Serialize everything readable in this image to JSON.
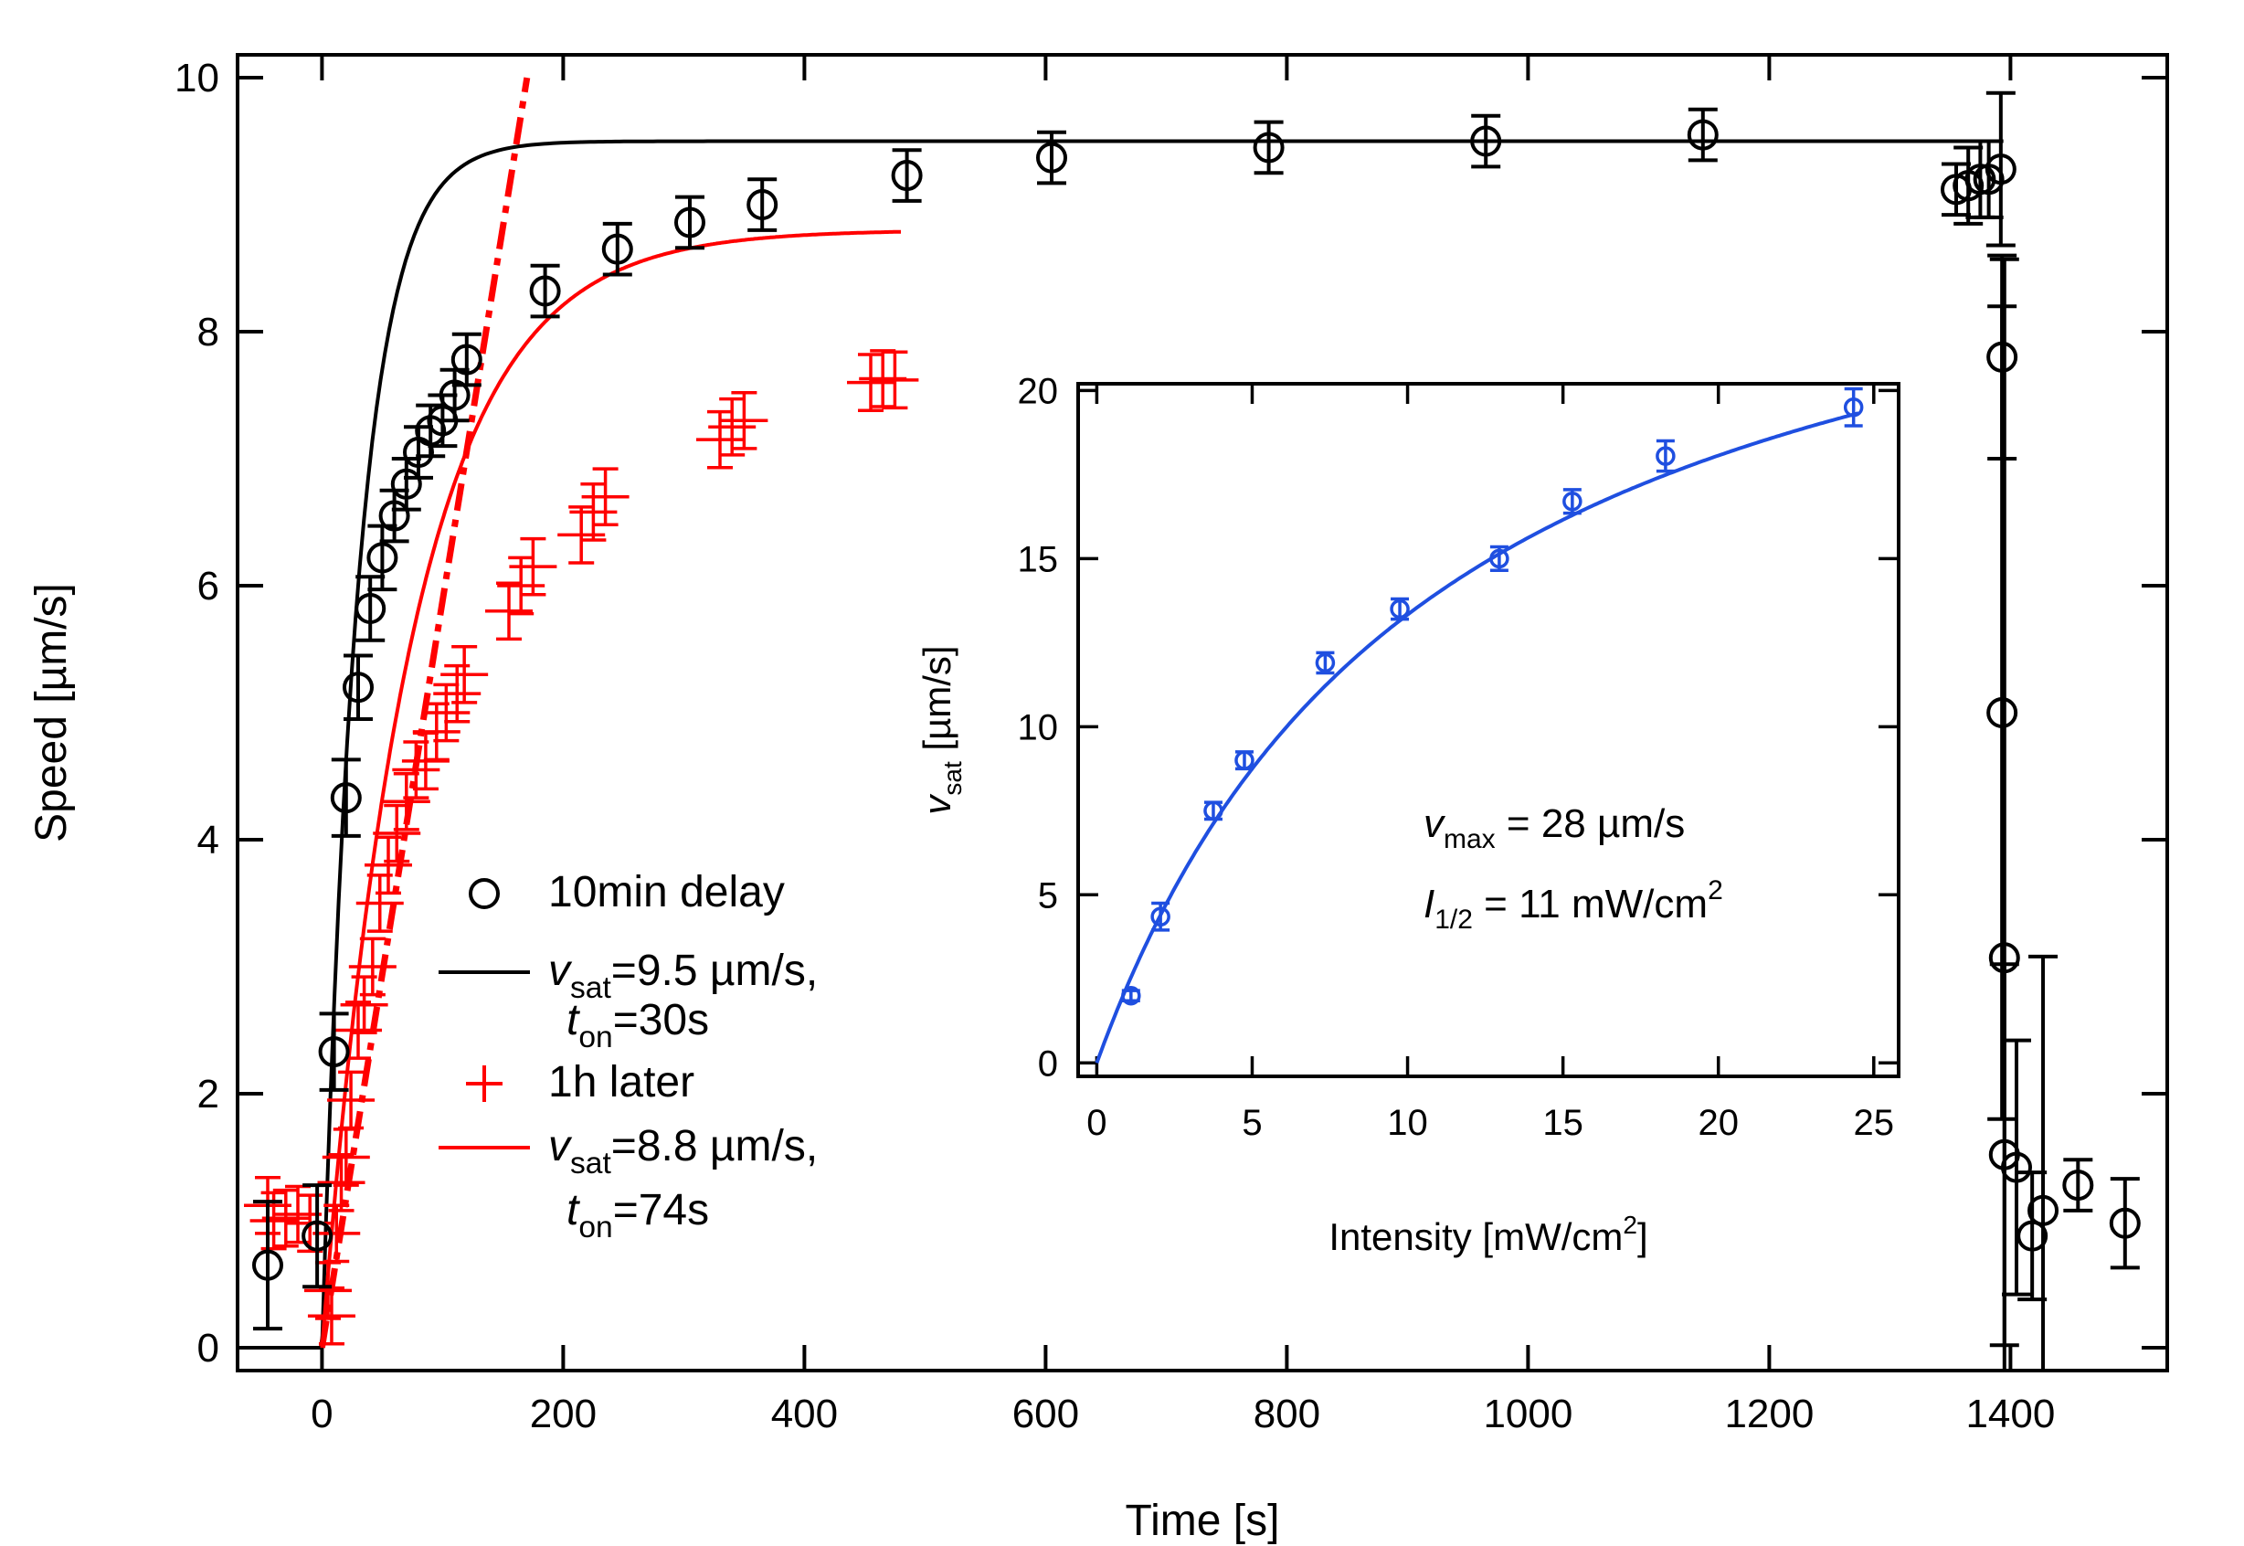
{
  "colors": {
    "black": "#000000",
    "red": "#ff0000",
    "blue": "#1f4fe0"
  },
  "chart_data": [
    {
      "id": "main",
      "type": "scatter",
      "xlabel": "Time [s]",
      "ylabel": "Speed [µm/s]",
      "xlim": [
        -70,
        1530
      ],
      "ylim": [
        -0.18,
        10.18
      ],
      "xticks": [
        0,
        200,
        400,
        600,
        800,
        1000,
        1200,
        1400
      ],
      "yticks": [
        0,
        2,
        4,
        6,
        8,
        10
      ],
      "series": [
        {
          "name": "10min delay",
          "kind": "circle",
          "color": "#000000",
          "points": [
            {
              "x": -45,
              "y": 0.65,
              "err": 0.5
            },
            {
              "x": -4,
              "y": 0.88,
              "err": 0.4
            },
            {
              "x": 10,
              "y": 2.33,
              "err": 0.3
            },
            {
              "x": 20,
              "y": 4.33,
              "err": 0.3
            },
            {
              "x": 30,
              "y": 5.2,
              "err": 0.25
            },
            {
              "x": 40,
              "y": 5.82,
              "err": 0.25
            },
            {
              "x": 50,
              "y": 6.22,
              "err": 0.25
            },
            {
              "x": 60,
              "y": 6.55,
              "err": 0.2
            },
            {
              "x": 70,
              "y": 6.8,
              "err": 0.2
            },
            {
              "x": 80,
              "y": 7.05,
              "err": 0.2
            },
            {
              "x": 90,
              "y": 7.22,
              "err": 0.2
            },
            {
              "x": 100,
              "y": 7.3,
              "err": 0.2
            },
            {
              "x": 110,
              "y": 7.5,
              "err": 0.2
            },
            {
              "x": 120,
              "y": 7.78,
              "err": 0.2
            },
            {
              "x": 185,
              "y": 8.32,
              "err": 0.2
            },
            {
              "x": 245,
              "y": 8.65,
              "err": 0.2
            },
            {
              "x": 305,
              "y": 8.86,
              "err": 0.2
            },
            {
              "x": 365,
              "y": 9.0,
              "err": 0.2
            },
            {
              "x": 485,
              "y": 9.23,
              "err": 0.2
            },
            {
              "x": 605,
              "y": 9.37,
              "err": 0.2
            },
            {
              "x": 785,
              "y": 9.45,
              "err": 0.2
            },
            {
              "x": 965,
              "y": 9.5,
              "err": 0.2
            },
            {
              "x": 1145,
              "y": 9.55,
              "err": 0.2
            },
            {
              "x": 1355,
              "y": 9.12,
              "err": 0.2
            },
            {
              "x": 1365,
              "y": 9.15,
              "err": 0.3
            },
            {
              "x": 1375,
              "y": 9.2,
              "err": 0.3
            },
            {
              "x": 1382,
              "y": 9.2,
              "err": 0.3
            },
            {
              "x": 1392,
              "y": 9.28,
              "err": 0.6
            },
            {
              "x": 1393,
              "y": 7.8,
              "err": 0.8
            },
            {
              "x": 1393,
              "y": 5.0,
              "err": 3.2
            },
            {
              "x": 1395,
              "y": 3.07,
              "err": 5.5
            },
            {
              "x": 1395,
              "y": 1.52,
              "err": 1.5
            },
            {
              "x": 1405,
              "y": 1.42,
              "err": 1.0
            },
            {
              "x": 1418,
              "y": 0.88,
              "err": 0.5
            },
            {
              "x": 1427,
              "y": 1.08,
              "err": 2.0
            },
            {
              "x": 1456,
              "y": 1.28,
              "err": 0.2
            },
            {
              "x": 1495,
              "y": 0.98,
              "err": 0.35
            }
          ]
        },
        {
          "name": "1h later",
          "kind": "plus",
          "color": "#ff0000",
          "points": [
            {
              "x": -45,
              "y": 1.12
            },
            {
              "x": -40,
              "y": 1.0
            },
            {
              "x": -30,
              "y": 1.02
            },
            {
              "x": -20,
              "y": 1.05
            },
            {
              "x": -10,
              "y": 0.98
            },
            {
              "x": 5,
              "y": 0.45
            },
            {
              "x": 8,
              "y": 0.25
            },
            {
              "x": 12,
              "y": 0.9
            },
            {
              "x": 16,
              "y": 1.3
            },
            {
              "x": 20,
              "y": 1.5
            },
            {
              "x": 24,
              "y": 1.95
            },
            {
              "x": 30,
              "y": 2.5
            },
            {
              "x": 35,
              "y": 2.7
            },
            {
              "x": 42,
              "y": 3.0
            },
            {
              "x": 48,
              "y": 3.5
            },
            {
              "x": 55,
              "y": 3.8
            },
            {
              "x": 62,
              "y": 4.05
            },
            {
              "x": 70,
              "y": 4.3
            },
            {
              "x": 78,
              "y": 4.55
            },
            {
              "x": 86,
              "y": 4.62
            },
            {
              "x": 95,
              "y": 4.85
            },
            {
              "x": 103,
              "y": 5.0
            },
            {
              "x": 112,
              "y": 5.15
            },
            {
              "x": 118,
              "y": 5.3
            },
            {
              "x": 155,
              "y": 5.8
            },
            {
              "x": 165,
              "y": 6.0
            },
            {
              "x": 175,
              "y": 6.15
            },
            {
              "x": 215,
              "y": 6.4
            },
            {
              "x": 225,
              "y": 6.58
            },
            {
              "x": 235,
              "y": 6.7
            },
            {
              "x": 330,
              "y": 7.15
            },
            {
              "x": 340,
              "y": 7.25
            },
            {
              "x": 350,
              "y": 7.3
            },
            {
              "x": 455,
              "y": 7.6
            },
            {
              "x": 465,
              "y": 7.63
            },
            {
              "x": 475,
              "y": 7.62
            }
          ],
          "err": 0.22
        },
        {
          "name": "v_sat=9.5 µm/s, t_on=30s",
          "kind": "fit",
          "color": "#000000",
          "vsat": 9.5,
          "ton": 30,
          "x_range": [
            0,
            1390
          ],
          "baseline_from": -70
        },
        {
          "name": "v_sat=8.8 µm/s, t_on=74s",
          "kind": "fit",
          "color": "#ff0000",
          "vsat": 8.8,
          "ton": 74,
          "x_range": [
            0,
            480
          ]
        },
        {
          "name": "initial slope",
          "kind": "dashdot",
          "color": "#ff0000",
          "x": [
            0,
            170
          ],
          "y": [
            0,
            10.0
          ]
        }
      ],
      "legend": {
        "position": "center-left",
        "entries": [
          {
            "symbol": "circle",
            "color": "#000000",
            "lines": [
              {
                "label": "10min delay"
              }
            ]
          },
          {
            "symbol": "line",
            "color": "#000000",
            "lines": [
              {
                "var": "v",
                "sub": "sat",
                "rest": "=9.5 µm/s,"
              },
              {
                "var": "t",
                "sub": "on",
                "rest": "=30s"
              }
            ]
          },
          {
            "symbol": "plus",
            "color": "#ff0000",
            "lines": [
              {
                "label": "1h later"
              }
            ]
          },
          {
            "symbol": "line",
            "color": "#ff0000",
            "lines": [
              {
                "var": "v",
                "sub": "sat",
                "rest": "=8.8 µm/s,"
              },
              {
                "var": "t",
                "sub": "on",
                "rest": "=74s"
              }
            ]
          }
        ]
      }
    },
    {
      "id": "inset",
      "type": "scatter",
      "xlabel": "Intensity [mW/cm",
      "xlabel_sup": "2",
      "xlabel_end": "]",
      "ylabel_var": "v",
      "ylabel_sub": "sat",
      "ylabel_rest": " [µm/s]",
      "xlim": [
        -0.6,
        25.8
      ],
      "ylim": [
        -0.4,
        20.2
      ],
      "xticks": [
        0,
        5,
        10,
        15,
        20,
        25
      ],
      "yticks": [
        0,
        5,
        10,
        15,
        20
      ],
      "series": [
        {
          "name": "measurements",
          "kind": "circle",
          "color": "#1f4fe0",
          "points": [
            {
              "x": 1.1,
              "y": 2.0,
              "err": 0.15
            },
            {
              "x": 2.05,
              "y": 4.35,
              "err": 0.4
            },
            {
              "x": 3.75,
              "y": 7.5,
              "err": 0.25
            },
            {
              "x": 4.75,
              "y": 9.0,
              "err": 0.25
            },
            {
              "x": 7.35,
              "y": 11.9,
              "err": 0.3
            },
            {
              "x": 9.75,
              "y": 13.5,
              "err": 0.3
            },
            {
              "x": 12.95,
              "y": 15.0,
              "err": 0.35
            },
            {
              "x": 15.3,
              "y": 16.7,
              "err": 0.35
            },
            {
              "x": 18.3,
              "y": 18.05,
              "err": 0.45
            },
            {
              "x": 24.35,
              "y": 19.5,
              "err": 0.55
            }
          ]
        },
        {
          "name": "saturation fit",
          "kind": "fit",
          "color": "#1f4fe0",
          "vmax": 28,
          "i_half": 11,
          "x_range": [
            0,
            24.5
          ]
        }
      ],
      "annotations": [
        {
          "var": "v",
          "sub": "max",
          "rest": " = 28 µm/s"
        },
        {
          "var": "I",
          "sub": "1/2",
          "rest": " = 11 mW/cm",
          "sup": "2"
        }
      ]
    }
  ]
}
